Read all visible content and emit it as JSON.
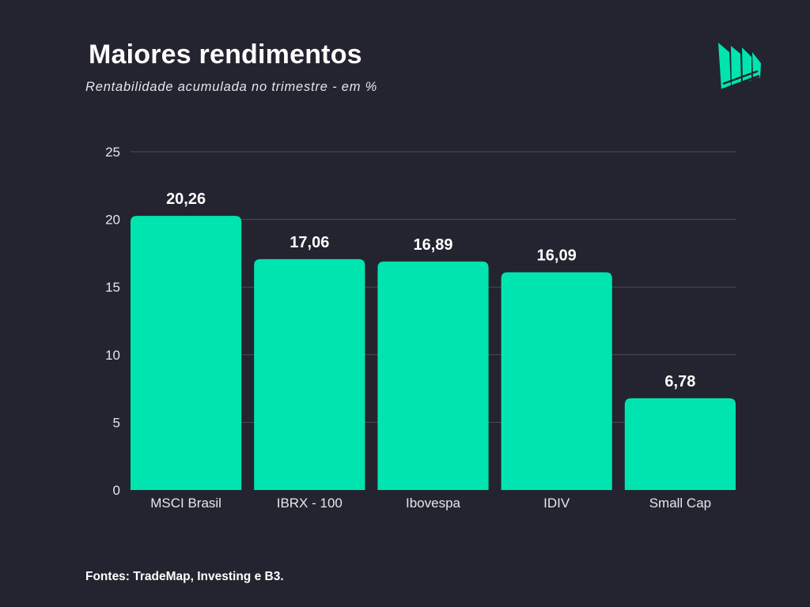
{
  "header": {
    "title": "Maiores rendimentos",
    "subtitle": "Rentabilidade acumulada no trimestre - em %"
  },
  "logo": {
    "icon": "stacked-flags-logo",
    "color": "#00e5b0"
  },
  "footer": {
    "sources": "Fontes: TradeMap, Investing e B3."
  },
  "colors": {
    "background": "#23242f",
    "bar": "#00e5b0",
    "grid": "#4a4b57",
    "text": "#ffffff"
  },
  "chart_data": {
    "type": "bar",
    "title": "Maiores rendimentos",
    "subtitle": "Rentabilidade acumulada no trimestre - em %",
    "xlabel": "",
    "ylabel": "",
    "categories": [
      "MSCI Brasil",
      "IBRX - 100",
      "Ibovespa",
      "IDIV",
      "Small Cap"
    ],
    "values": [
      20.26,
      17.06,
      16.89,
      16.09,
      6.78
    ],
    "value_labels": [
      "20,26",
      "17,06",
      "16,89",
      "16,09",
      "6,78"
    ],
    "ylim": [
      0,
      25
    ],
    "yticks": [
      0,
      5,
      10,
      15,
      20,
      25
    ],
    "ytick_labels": [
      "0",
      "5",
      "10",
      "15",
      "20",
      "25"
    ],
    "grid": true,
    "legend": "none"
  }
}
